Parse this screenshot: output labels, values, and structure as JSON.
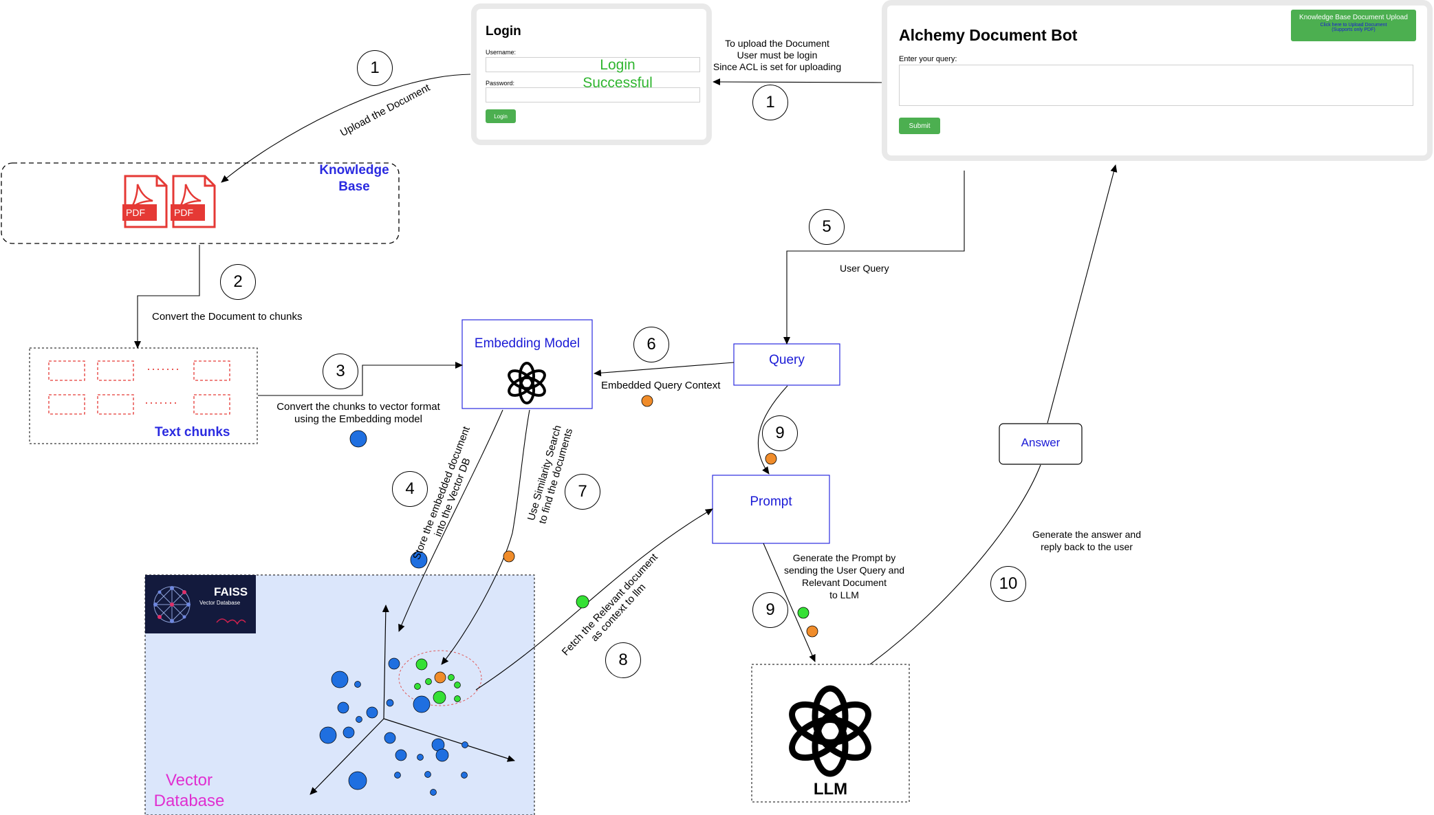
{
  "login_panel": {
    "title": "Login",
    "username_label": "Username:",
    "password_label": "Password:",
    "status_line1": "Login",
    "status_line2": "Successful",
    "button": "Login"
  },
  "bot_panel": {
    "title": "Alchemy Document Bot",
    "query_label": "Enter your query:",
    "submit": "Submit",
    "upload_title": "Knowledge Base Document Upload",
    "upload_link": "Click here to Upload Document",
    "upload_note": "(Supports only PDF)"
  },
  "notes": {
    "upload_line1": "To upload the Document",
    "upload_line2": "User must be login",
    "upload_line3": "Since ACL is set for uploading",
    "upload_doc": "Upload the Document",
    "convert_chunks": "Convert the Document to chunks",
    "to_vector_line1": "Convert the chunks to vector format",
    "to_vector_line2": "using the Embedding model",
    "user_query": "User Query",
    "embedded_query": "Embedded Query Context",
    "store_line1": "Store the embedded document",
    "store_line2": "into the Vector DB",
    "similarity_line1": "Use Similarity Search",
    "similarity_line2": "to find the documents",
    "fetch_line1": "Fetch the Relevant document",
    "fetch_line2": "as context to llm",
    "prompt_line1": "Generate the Prompt by",
    "prompt_line2": "sending the User Query and",
    "prompt_line3": "Relevant Document",
    "prompt_line4": "to LLM",
    "answer_line1": "Generate the answer and",
    "answer_line2": "reply back to the user"
  },
  "boxes": {
    "knowledge_base_line1": "Knowledge",
    "knowledge_base_line2": "Base",
    "pdf": "PDF",
    "text_chunks": "Text chunks",
    "chunk_dots": "·······",
    "embedding_model": "Embedding Model",
    "query": "Query",
    "prompt": "Prompt",
    "answer": "Answer",
    "llm": "LLM",
    "vector_db_line1": "Vector",
    "vector_db_line2": "Database",
    "faiss_title": "FAISS",
    "faiss_subtitle": "Vector Database"
  },
  "steps": {
    "s1a": "1",
    "s1b": "1",
    "s2": "2",
    "s3": "3",
    "s4": "4",
    "s5": "5",
    "s6": "6",
    "s7": "7",
    "s8": "8",
    "s9a": "9",
    "s9b": "9",
    "s10": "10"
  },
  "colors": {
    "blue_text": "#1a1ad6",
    "green_text": "#2fb52f",
    "pdf_red": "#e53935",
    "vector_bg": "#dbe6fb",
    "dot_blue": "#1f6fe0",
    "dot_green": "#35e035",
    "dot_orange": "#f08c2a",
    "magenta": "#e02fd0"
  }
}
